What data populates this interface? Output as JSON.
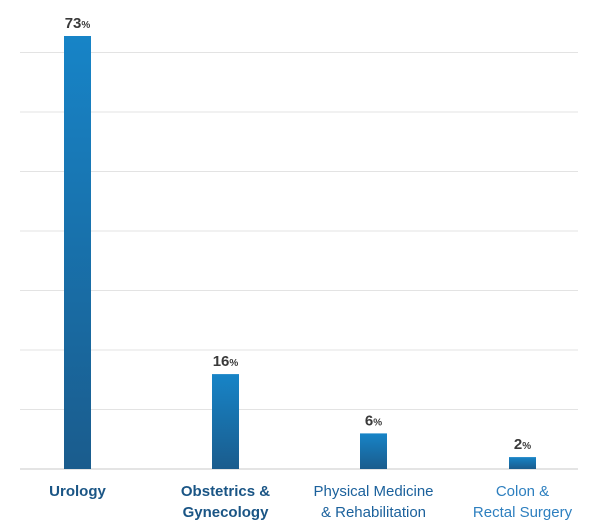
{
  "chart_data": {
    "type": "bar",
    "categories": [
      "Urology",
      "Obstetrics & Gynecology",
      "Physical Medicine & Rehabilitation",
      "Colon & Rectal Surgery"
    ],
    "category_label_lines": [
      [
        "Urology"
      ],
      [
        "Obstetrics &",
        "Gynecology"
      ],
      [
        "Physical Medicine",
        "& Rehabilitation"
      ],
      [
        "Colon &",
        "Rectal Surgery"
      ]
    ],
    "values": [
      73,
      16,
      6,
      2
    ],
    "value_unit": "%",
    "title": "",
    "xlabel": "",
    "ylabel": "",
    "ylim": [
      0,
      73
    ],
    "grid": true,
    "legend": "none",
    "colors": {
      "bar_top": "#1784c7",
      "bar_bottom": "#1a5c8d",
      "grid": "#e3e3e3",
      "axis": "#c9c9c9",
      "value_label": "#3a3a3a",
      "label_emphasis": "#1a5585",
      "label_medium": "#1b619c",
      "label_light": "#2d7fbf"
    }
  }
}
